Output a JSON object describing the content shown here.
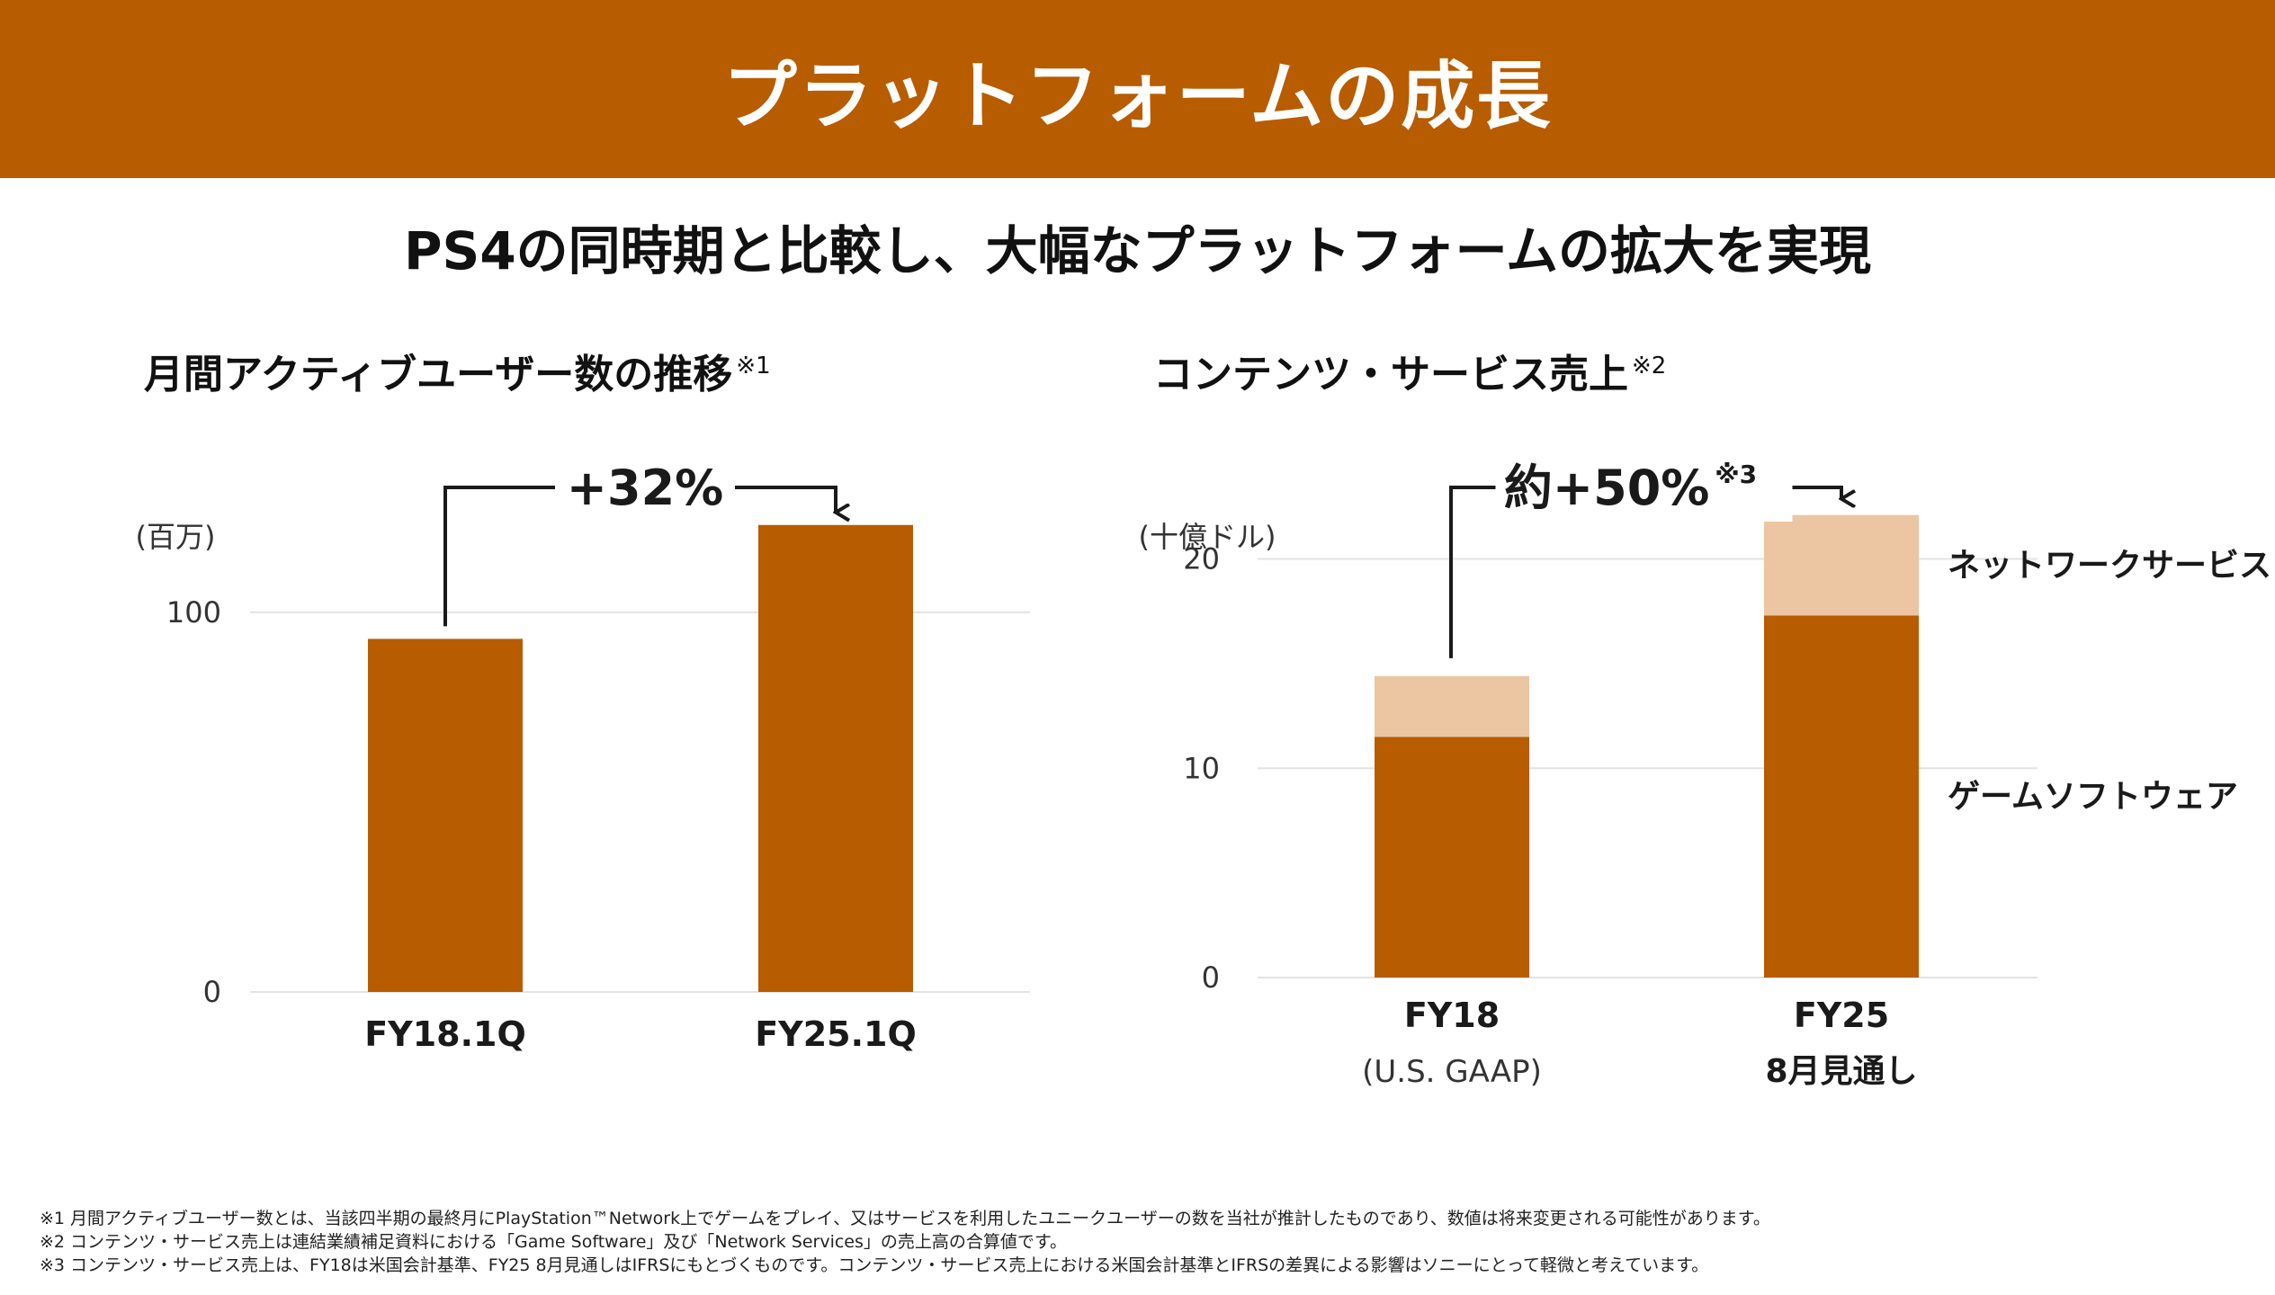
{
  "header": {
    "title": "プラットフォームの成長"
  },
  "subtitle": "PS4の同時期と比較し、大幅なプラットフォームの拡大を実現",
  "colors": {
    "accent": "#b85c00",
    "light_accent": "#ecc5a2",
    "gridline": "#e3e3e3"
  },
  "chart_data": [
    {
      "type": "bar",
      "title": "月間アクティブユーザー数の推移",
      "title_note": "※1",
      "ylabel": "(百万)",
      "ylim": [
        0,
        140
      ],
      "yticks": [
        "0",
        "100"
      ],
      "categories": [
        "FY18.1Q",
        "FY25.1Q"
      ],
      "values": [
        93,
        123
      ],
      "annotation": "+32%",
      "grid": true,
      "legend": "none"
    },
    {
      "type": "bar",
      "stacked": true,
      "title": "コンテンツ・サービス売上",
      "title_note": "※2",
      "ylabel": "(十億ドル)",
      "ylim": [
        0,
        22
      ],
      "yticks": [
        "0",
        "10",
        "20"
      ],
      "categories": [
        "FY18",
        "FY25"
      ],
      "category_sublabels": [
        "(U.S. GAAP)",
        "8月見通し"
      ],
      "series": [
        {
          "name": "ゲームソフトウェア",
          "values": [
            11.5,
            17.3
          ]
        },
        {
          "name": "ネットワークサービス",
          "values": [
            2.9,
            4.8
          ]
        }
      ],
      "annotation": "約+50%",
      "annotation_note": "※3",
      "grid": true,
      "legend": "right"
    }
  ],
  "footnotes": [
    "※1 月間アクティブユーザー数とは、当該四半期の最終月にPlayStation™Network上でゲームをプレイ、又はサービスを利用したユニークユーザーの数を当社が推計したものであり、数値は将来変更される可能性があります。",
    "※2 コンテンツ・サービス売上は連結業績補足資料における「Game Software」及び「Network Services」の売上高の合算値です。",
    "※3 コンテンツ・サービス売上は、FY18は米国会計基準、FY25 8月見通しはIFRSにもとづくものです。コンテンツ・サービス売上における米国会計基準とIFRSの差異による影響はソニーにとって軽微と考えています。"
  ]
}
